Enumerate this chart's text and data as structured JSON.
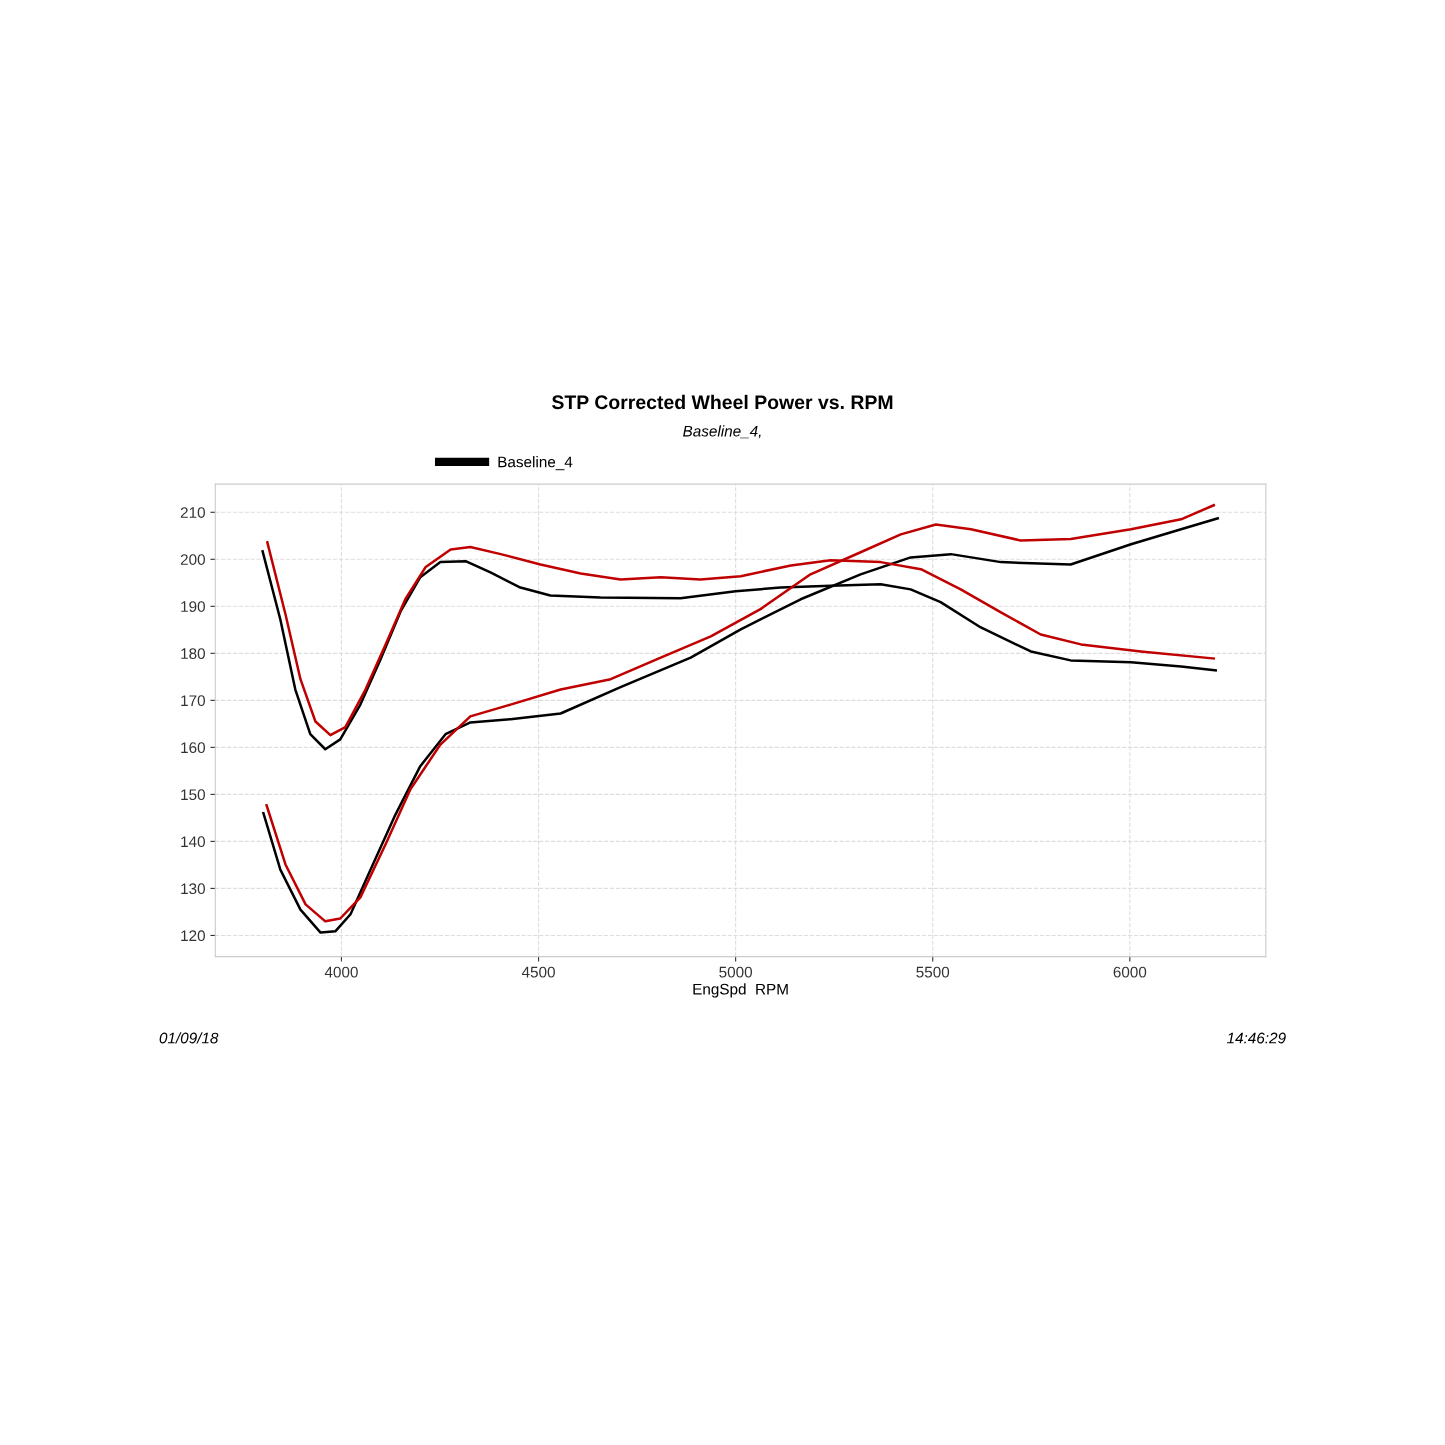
{
  "chart_data": {
    "type": "line",
    "title": "STP Corrected Wheel Power vs. RPM",
    "subtitle": "Baseline_4,",
    "xlabel": "EngSpd  RPM",
    "annotations": [
      "01/09/18",
      "14:46:29"
    ],
    "xlim": [
      3680,
      6345
    ],
    "xticks": [
      4000,
      4500,
      5000,
      5500,
      6000
    ],
    "ylim": [
      115.5,
      216
    ],
    "yticks": [
      120,
      130,
      140,
      150,
      160,
      170,
      180,
      190,
      200,
      210
    ],
    "grid": true,
    "legend": "top",
    "line_style": "solid",
    "marker": "none",
    "series": [
      {
        "name": "Baseline_4",
        "color": "#000000",
        "x": [
          3800,
          3845,
          3883,
          3921,
          3959,
          3997,
          4048,
          4099,
          4150,
          4200,
          4251,
          4315,
          4378,
          4454,
          4530,
          4657,
          4860,
          5000,
          5114,
          5241,
          5368,
          5444,
          5520,
          5622,
          5749,
          5850,
          6003,
          6130,
          6218
        ],
        "values": [
          201.7,
          187.2,
          172.3,
          162.8,
          159.6,
          161.7,
          169.1,
          178.7,
          188.9,
          196.2,
          199.4,
          199.6,
          197.2,
          194.0,
          192.3,
          191.9,
          191.7,
          193.2,
          194.0,
          194.4,
          194.7,
          193.6,
          190.9,
          185.5,
          180.4,
          178.5,
          178.1,
          177.2,
          176.4
        ]
      },
      {
        "color": "#000000",
        "x": [
          3802,
          3845,
          3896,
          3947,
          3985,
          4023,
          4074,
          4137,
          4200,
          4264,
          4327,
          4429,
          4556,
          4708,
          4886,
          5013,
          5165,
          5317,
          5444,
          5546,
          5673,
          5850,
          6003,
          6130,
          6223
        ],
        "values": [
          146.0,
          134.0,
          125.5,
          120.6,
          120.9,
          124.5,
          134.0,
          145.7,
          156.0,
          162.8,
          165.3,
          166.0,
          167.2,
          172.8,
          179.1,
          185.1,
          191.5,
          196.8,
          200.4,
          201.1,
          199.4,
          198.9,
          203.2,
          206.4,
          208.7
        ]
      },
      {
        "color": "#c00000",
        "x": [
          3812,
          3858,
          3896,
          3934,
          3972,
          4010,
          4061,
          4112,
          4162,
          4213,
          4277,
          4327,
          4404,
          4505,
          4607,
          4708,
          4810,
          4911,
          5013,
          5140,
          5241,
          5368,
          5470,
          5571,
          5673,
          5774,
          5876,
          6028,
          6213
        ],
        "values": [
          203.6,
          188.3,
          174.5,
          165.5,
          162.6,
          164.3,
          172.3,
          181.9,
          191.5,
          198.3,
          202.1,
          202.6,
          201.1,
          198.9,
          197.0,
          195.7,
          196.2,
          195.7,
          196.4,
          198.7,
          199.8,
          199.4,
          197.9,
          193.6,
          188.7,
          184.0,
          181.9,
          180.4,
          178.9
        ]
      },
      {
        "color": "#c00000",
        "x": [
          3810,
          3858,
          3909,
          3959,
          3997,
          4048,
          4112,
          4175,
          4251,
          4327,
          4429,
          4556,
          4683,
          4810,
          4937,
          5063,
          5190,
          5317,
          5419,
          5508,
          5597,
          5723,
          5850,
          6003,
          6130,
          6213
        ],
        "values": [
          147.7,
          135.1,
          126.6,
          123.0,
          123.6,
          128.1,
          139.4,
          151.1,
          160.6,
          166.6,
          169.1,
          172.3,
          174.5,
          179.1,
          183.6,
          189.4,
          196.8,
          201.5,
          205.3,
          207.4,
          206.4,
          204.0,
          204.3,
          206.4,
          208.5,
          211.5
        ]
      }
    ]
  }
}
